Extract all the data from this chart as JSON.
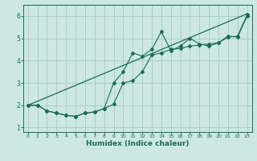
{
  "xlabel": "Humidex (Indice chaleur)",
  "xlim": [
    -0.5,
    23.5
  ],
  "ylim": [
    0.8,
    6.5
  ],
  "xticks": [
    0,
    1,
    2,
    3,
    4,
    5,
    6,
    7,
    8,
    9,
    10,
    11,
    12,
    13,
    14,
    15,
    16,
    17,
    18,
    19,
    20,
    21,
    22,
    23
  ],
  "yticks": [
    1,
    2,
    3,
    4,
    5,
    6
  ],
  "bg_color": "#cce8e0",
  "line_color": "#1a6b5a",
  "grid_color": "#aacfc8",
  "line1_x": [
    0,
    1,
    2,
    3,
    4,
    5,
    6,
    7,
    8,
    9,
    10,
    11,
    12,
    13,
    14,
    15,
    16,
    17,
    18,
    19,
    20,
    21,
    22,
    23
  ],
  "line1_y": [
    2.0,
    2.0,
    1.75,
    1.65,
    1.55,
    1.5,
    1.65,
    1.7,
    1.85,
    2.05,
    3.0,
    3.1,
    3.5,
    4.25,
    4.35,
    4.5,
    4.55,
    4.65,
    4.7,
    4.75,
    4.8,
    5.1,
    5.05,
    6.0
  ],
  "line2_x": [
    0,
    1,
    2,
    3,
    4,
    5,
    6,
    7,
    8,
    9,
    10,
    11,
    12,
    13,
    14,
    15,
    16,
    17,
    18,
    19,
    20,
    21,
    22,
    23
  ],
  "line2_y": [
    2.0,
    2.0,
    1.75,
    1.65,
    1.55,
    1.5,
    1.65,
    1.7,
    1.85,
    3.0,
    3.5,
    4.35,
    4.2,
    4.5,
    5.3,
    4.45,
    4.65,
    5.0,
    4.75,
    4.65,
    4.8,
    5.05,
    5.1,
    6.05
  ],
  "line3_x": [
    0,
    23
  ],
  "line3_y": [
    2.0,
    6.1
  ]
}
